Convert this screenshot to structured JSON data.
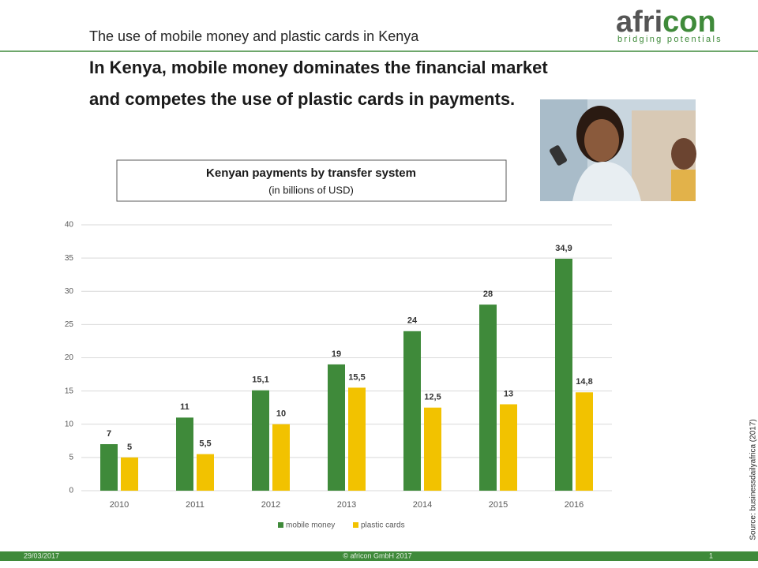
{
  "header": {
    "title": "The use of mobile money and plastic cards in Kenya",
    "headline": [
      "In Kenya, mobile money dominates the financial market",
      "and competes the use of plastic cards in payments."
    ]
  },
  "logo": {
    "name": [
      "afri",
      "con"
    ],
    "tagline": "bridging potentials"
  },
  "chart_data": {
    "type": "bar",
    "title": "Kenyan payments by transfer system",
    "subtitle": "(in billions of USD)",
    "categories": [
      "2010",
      "2011",
      "2012",
      "2013",
      "2014",
      "2015",
      "2016"
    ],
    "series": [
      {
        "name": "mobile money",
        "color": "#3f8a3a",
        "values": [
          7,
          11,
          15.1,
          19,
          24,
          28,
          34.9
        ],
        "value_labels": [
          "7",
          "11",
          "15,1",
          "19",
          "24",
          "28",
          "34,9"
        ]
      },
      {
        "name": "plastic cards",
        "color": "#f2c200",
        "values": [
          5,
          5.5,
          10,
          15.5,
          12.5,
          13,
          14.8
        ],
        "value_labels": [
          "5",
          "5,5",
          "10",
          "15,5",
          "12,5",
          "13",
          "14,8"
        ]
      }
    ],
    "ylim": [
      0,
      40
    ],
    "yticks": [
      0,
      5,
      10,
      15,
      20,
      25,
      30,
      35,
      40
    ],
    "grid": true,
    "legend": "bottom"
  },
  "source": "Source: businessdailyafrica (2017)",
  "footer": {
    "date": "29/03/2017",
    "copyright": "© africon GmbH 2017",
    "page": "1"
  }
}
